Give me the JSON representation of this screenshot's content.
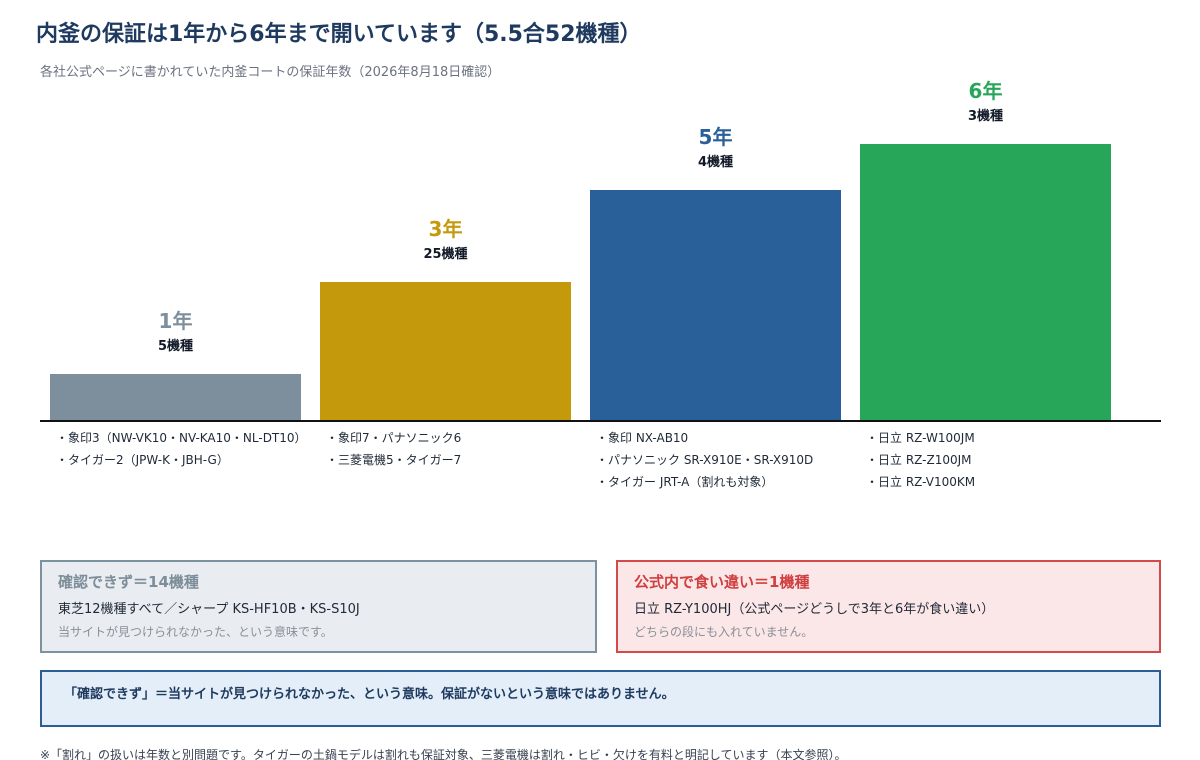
{
  "title": "内釜の保証は1年から6年まで開いています（5.5合52機種）",
  "subtitle": "各社公式ページに書かれていた内釜コートの保証年数（2026年8月18日確認）",
  "chart_data": {
    "type": "bar",
    "categories": [
      "1年",
      "3年",
      "5年",
      "6年"
    ],
    "values": [
      5,
      25,
      4,
      3
    ],
    "value_labels": [
      "5機種",
      "25機種",
      "4機種",
      "3機種"
    ],
    "colors": [
      "#7d8f9c",
      "#c49a0c",
      "#2a6099",
      "#27a65a"
    ],
    "note": "bar heights rise in steps and do not scale with the model counts"
  },
  "groups": [
    {
      "items": [
        "・象印3（NW-VK10・NV-KA10・NL-DT10）",
        "・タイガー2（JPW-K・JBH-G）"
      ]
    },
    {
      "items": [
        "・象印7・パナソニック6",
        "・三菱電機5・タイガー7"
      ]
    },
    {
      "items": [
        "・象印 NX-AB10",
        "・パナソニック SR-X910E・SR-X910D",
        "・タイガー JRT-A（割れも対象）"
      ]
    },
    {
      "items": [
        "・日立 RZ-W100JM",
        "・日立 RZ-Z100JM",
        "・日立 RZ-V100KM"
      ]
    }
  ],
  "boxes": {
    "unconfirmed": {
      "title": "確認できず＝14機種",
      "body": "東芝12機種すべて／シャープ KS-HF10B・KS-S10J",
      "note": "当サイトが見つけられなかった、という意味です。"
    },
    "conflict": {
      "title": "公式内で食い違い＝1機種",
      "body": "日立 RZ-Y100HJ（公式ページどうしで3年と6年が食い違い）",
      "note": "どちらの段にも入れていません。"
    }
  },
  "notice": "「確認できず」＝当サイトが見つけられなかった、という意味。保証がないという意味ではありません。",
  "footnote": "※「割れ」の扱いは年数と別問題です。タイガーの土鍋モデルは割れも保証対象、三菱電機は割れ・ヒビ・欠けを有料と明記しています（本文参照）。"
}
